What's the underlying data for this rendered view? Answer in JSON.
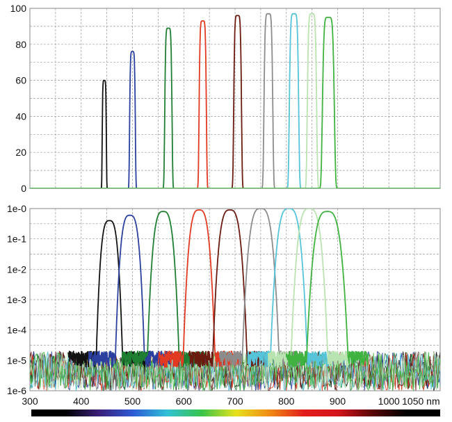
{
  "chart_data": [
    {
      "type": "line",
      "title": "",
      "xlabel": "",
      "ylabel": "",
      "x_unit": "nm",
      "xlim": [
        300,
        1100
      ],
      "ylim": [
        0,
        100
      ],
      "y_ticks": [
        "0",
        "20",
        "40",
        "60",
        "80",
        "100"
      ],
      "grid": true,
      "series": [
        {
          "center": 445,
          "fwhm": 8,
          "peak": 60,
          "color": "#111111"
        },
        {
          "center": 500,
          "fwhm": 11,
          "peak": 76,
          "color": "#2a3f9e"
        },
        {
          "center": 570,
          "fwhm": 14,
          "peak": 89,
          "color": "#1e7f32"
        },
        {
          "center": 637,
          "fwhm": 14,
          "peak": 93,
          "color": "#e23a22"
        },
        {
          "center": 705,
          "fwhm": 15,
          "peak": 96,
          "color": "#6b1a10"
        },
        {
          "center": 765,
          "fwhm": 17,
          "peak": 97,
          "color": "#8c8c8c"
        },
        {
          "center": 815,
          "fwhm": 18,
          "peak": 97,
          "color": "#55c3d8"
        },
        {
          "center": 850,
          "fwhm": 18,
          "peak": 97,
          "color": "#b9e3b0"
        },
        {
          "center": 882,
          "fwhm": 23,
          "peak": 95,
          "color": "#3fb23f"
        }
      ]
    },
    {
      "type": "line",
      "title": "",
      "xlabel": "",
      "ylabel": "",
      "x_unit": "nm",
      "xlim": [
        300,
        1100
      ],
      "ylim_log10": [
        -6,
        0
      ],
      "log_scale": true,
      "y_ticks": [
        "1e-0",
        "1e-1",
        "1e-2",
        "1e-3",
        "1e-4",
        "1e-5",
        "1e-6"
      ],
      "x_ticks": [
        "300",
        "400",
        "500",
        "600",
        "700",
        "800",
        "900",
        "1000",
        "1050 nm"
      ],
      "grid": true,
      "series": [
        {
          "center": 455,
          "width": 22,
          "peak": 0.4,
          "color": "#111111"
        },
        {
          "center": 495,
          "width": 24,
          "peak": 0.6,
          "color": "#2a3f9e"
        },
        {
          "center": 560,
          "width": 26,
          "peak": 0.8,
          "color": "#1e7f32"
        },
        {
          "center": 630,
          "width": 26,
          "peak": 0.9,
          "color": "#e23a22"
        },
        {
          "center": 690,
          "width": 28,
          "peak": 0.9,
          "color": "#6b1a10"
        },
        {
          "center": 750,
          "width": 30,
          "peak": 1.0,
          "color": "#8c8c8c"
        },
        {
          "center": 805,
          "width": 30,
          "peak": 1.0,
          "color": "#55c3d8"
        },
        {
          "center": 845,
          "width": 30,
          "peak": 1.0,
          "color": "#b9e3b0"
        },
        {
          "center": 880,
          "width": 34,
          "peak": 0.8,
          "color": "#3fb23f"
        }
      ],
      "noise_floor": [
        1e-06,
        2e-05
      ]
    }
  ],
  "spectrum_bar": {
    "stops": [
      "#000000",
      "#000000",
      "#3b1f7a",
      "#2d5cd6",
      "#30c1d6",
      "#38c44a",
      "#e7e21d",
      "#f08a14",
      "#e21d1d",
      "#d4141c",
      "#5a0506",
      "#000000",
      "#000000"
    ]
  }
}
